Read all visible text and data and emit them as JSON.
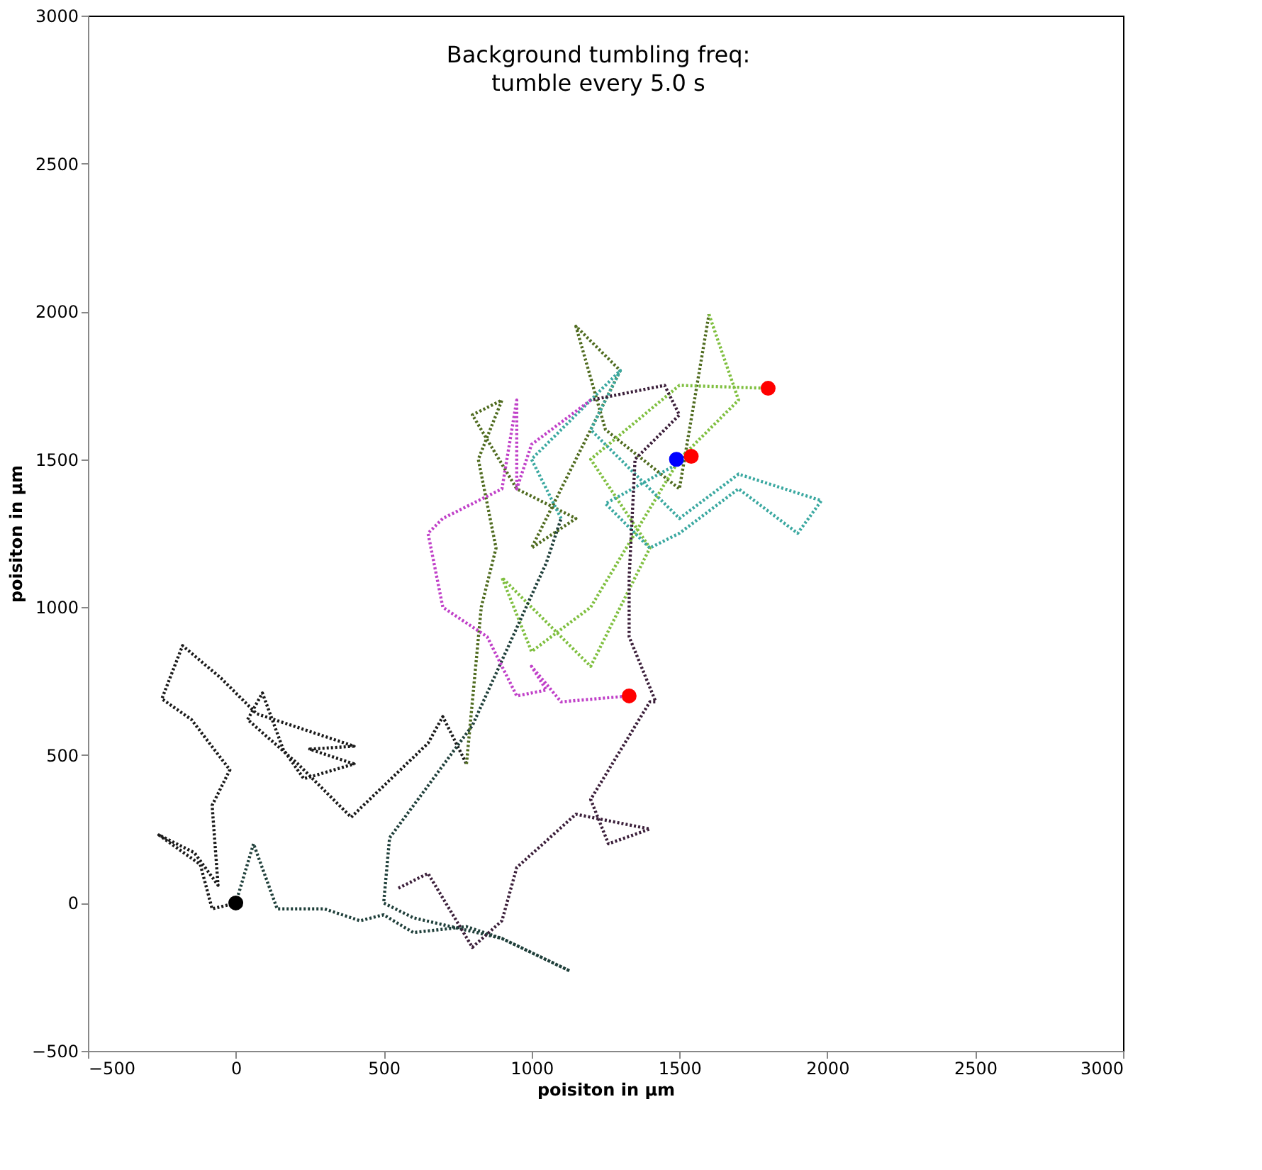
{
  "chart_data": {
    "type": "line",
    "title": "Background tumbling freq:\ntumble every 5.0 s",
    "xlabel": "poisiton in µm",
    "ylabel": "poisiton in µm",
    "xlim": [
      -500,
      3000
    ],
    "ylim": [
      -500,
      3000
    ],
    "xticks": [
      -500,
      0,
      500,
      1000,
      1500,
      2000,
      2500,
      3000
    ],
    "yticks": [
      -500,
      0,
      500,
      1000,
      1500,
      2000,
      2500,
      3000
    ],
    "grid": false,
    "line_style": "dotted",
    "series": [
      {
        "color": "#1a1a1a",
        "x": [
          0,
          -80,
          -120,
          -260,
          -140,
          -60,
          -80,
          -20,
          -150,
          -250,
          -180,
          -50,
          70,
          400,
          250,
          400,
          230,
          160,
          90,
          40,
          210,
          390,
          650,
          700,
          780
        ],
        "values": [
          0,
          -20,
          130,
          230,
          170,
          60,
          330,
          450,
          620,
          690,
          870,
          760,
          640,
          530,
          520,
          470,
          420,
          520,
          710,
          620,
          470,
          290,
          540,
          630,
          470
        ]
      },
      {
        "color": "#4f6b1f",
        "x": [
          780,
          830,
          880,
          820,
          900,
          800,
          950,
          1150,
          1000,
          1300,
          1150,
          1250,
          1500,
          1600
        ],
        "values": [
          470,
          1000,
          1200,
          1500,
          1700,
          1650,
          1400,
          1300,
          1200,
          1800,
          1950,
          1600,
          1400,
          1990
        ]
      },
      {
        "color": "#7fbf3f",
        "x": [
          1600,
          1700,
          1500,
          1350,
          1200,
          1000,
          900,
          1200,
          1400,
          1200,
          1500,
          1800
        ],
        "values": [
          1990,
          1700,
          1500,
          1250,
          1000,
          850,
          1100,
          800,
          1200,
          1500,
          1750,
          1740
        ]
      },
      {
        "color": "#1f3f3a",
        "x": [
          0,
          60,
          140,
          300,
          420,
          500,
          600,
          780,
          900,
          1130,
          900,
          600,
          500,
          520,
          800,
          1050,
          1100
        ],
        "values": [
          0,
          200,
          -20,
          -20,
          -60,
          -40,
          -100,
          -80,
          -120,
          -230,
          -120,
          -50,
          0,
          220,
          600,
          1150,
          1300
        ]
      },
      {
        "color": "#3aa8a0",
        "x": [
          1100,
          1000,
          1250,
          1300,
          1200,
          1350,
          1500,
          1700,
          1980,
          1900,
          1700,
          1500,
          1400,
          1250,
          1540
        ],
        "values": [
          1300,
          1500,
          1750,
          1800,
          1600,
          1450,
          1300,
          1450,
          1360,
          1250,
          1400,
          1250,
          1200,
          1350,
          1510
        ]
      },
      {
        "color": "#3b1f3a",
        "x": [
          550,
          650,
          800,
          900,
          950,
          1150,
          1400,
          1260,
          1200,
          1400,
          1420,
          1330,
          1330,
          1350,
          1500,
          1450,
          1200
        ],
        "values": [
          50,
          100,
          -150,
          -60,
          120,
          300,
          250,
          200,
          350,
          680,
          680,
          900,
          1100,
          1500,
          1650,
          1750,
          1700
        ]
      },
      {
        "color": "#c040c8",
        "x": [
          1200,
          1000,
          950,
          950,
          900,
          700,
          650,
          700,
          850,
          950,
          1050,
          1000,
          1100,
          1330
        ],
        "values": [
          1700,
          1550,
          1400,
          1700,
          1400,
          1300,
          1250,
          1000,
          900,
          700,
          720,
          800,
          680,
          700
        ]
      },
      {
        "type": "scatter",
        "color": "#000000",
        "x": [
          0
        ],
        "values": [
          0
        ]
      },
      {
        "type": "scatter",
        "color": "#0000ff",
        "x": [
          1490
        ],
        "values": [
          1500
        ]
      },
      {
        "type": "scatter",
        "color": "#ff0000",
        "x": [
          1800,
          1540,
          1330
        ],
        "values": [
          1740,
          1510,
          700
        ]
      }
    ]
  }
}
